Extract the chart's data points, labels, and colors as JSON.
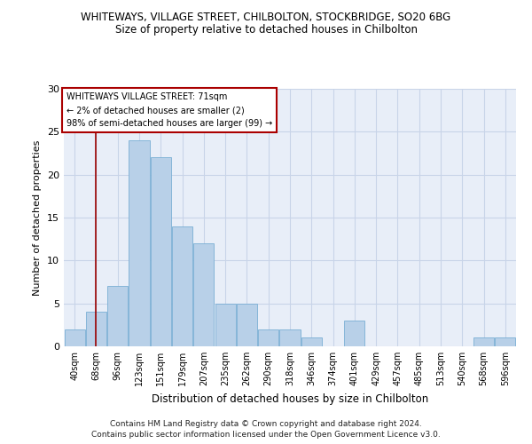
{
  "title1": "WHITEWAYS, VILLAGE STREET, CHILBOLTON, STOCKBRIDGE, SO20 6BG",
  "title2": "Size of property relative to detached houses in Chilbolton",
  "xlabel": "Distribution of detached houses by size in Chilbolton",
  "ylabel": "Number of detached properties",
  "categories": [
    "40sqm",
    "68sqm",
    "96sqm",
    "123sqm",
    "151sqm",
    "179sqm",
    "207sqm",
    "235sqm",
    "262sqm",
    "290sqm",
    "318sqm",
    "346sqm",
    "374sqm",
    "401sqm",
    "429sqm",
    "457sqm",
    "485sqm",
    "513sqm",
    "540sqm",
    "568sqm",
    "596sqm"
  ],
  "values": [
    2,
    4,
    7,
    24,
    22,
    14,
    12,
    5,
    5,
    2,
    2,
    1,
    0,
    3,
    0,
    0,
    0,
    0,
    0,
    1,
    1
  ],
  "bar_color": "#b8d0e8",
  "bar_edge_color": "#7aafd4",
  "grid_color": "#c8d4e8",
  "bg_color": "#e8eef8",
  "red_line_x": 1.0,
  "annotation_title": "WHITEWAYS VILLAGE STREET: 71sqm",
  "annotation_line1": "← 2% of detached houses are smaller (2)",
  "annotation_line2": "98% of semi-detached houses are larger (99) →",
  "footer1": "Contains HM Land Registry data © Crown copyright and database right 2024.",
  "footer2": "Contains public sector information licensed under the Open Government Licence v3.0.",
  "ylim": [
    0,
    30
  ],
  "yticks": [
    0,
    5,
    10,
    15,
    20,
    25,
    30
  ]
}
